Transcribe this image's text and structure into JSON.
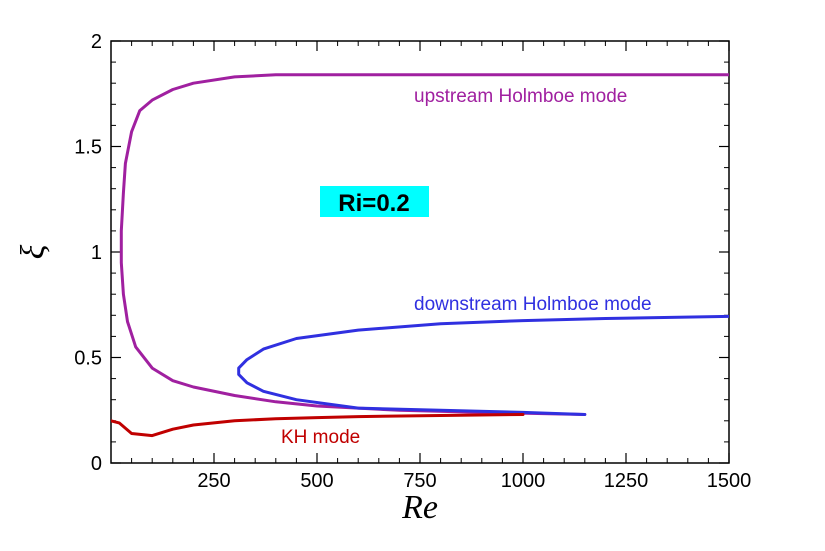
{
  "chart_data": {
    "type": "line",
    "xlabel": "Re",
    "ylabel": "ξ",
    "xlim": [
      0,
      1500
    ],
    "ylim": [
      0,
      2
    ],
    "x_ticks": [
      "250",
      "500",
      "750",
      "1000",
      "1250",
      "1500"
    ],
    "y_ticks": [
      "0",
      "0.5",
      "1",
      "1.5",
      "2"
    ],
    "x_tick_values": [
      250,
      500,
      750,
      1000,
      1250,
      1500
    ],
    "y_tick_values": [
      0,
      0.5,
      1,
      1.5,
      2
    ],
    "x_minor_step": 50,
    "y_minor_step": 0.1,
    "grid": false,
    "annotations": {
      "ri": "Ri=0.2",
      "upstream": "upstream Holmboe mode",
      "downstream": "downstream Holmboe mode",
      "kh": "KH mode"
    },
    "colors": {
      "ri_box": "#00ffff",
      "upstream": "#a020a0",
      "downstream": "#3030e0",
      "kh": "#c00000"
    },
    "series": [
      {
        "id": "upstream",
        "color": "#a020a0",
        "x": [
          1150,
          900,
          700,
          500,
          400,
          300,
          200,
          150,
          100,
          60,
          40,
          30,
          25,
          25,
          30,
          35,
          50,
          70,
          100,
          150,
          200,
          300,
          400,
          600,
          800,
          1000,
          1200,
          1500
        ],
        "y": [
          0.23,
          0.24,
          0.25,
          0.27,
          0.29,
          0.32,
          0.36,
          0.39,
          0.45,
          0.55,
          0.67,
          0.8,
          0.95,
          1.1,
          1.28,
          1.42,
          1.57,
          1.67,
          1.72,
          1.77,
          1.8,
          1.83,
          1.84,
          1.84,
          1.84,
          1.84,
          1.84,
          1.84
        ]
      },
      {
        "id": "downstream",
        "color": "#3030e0",
        "x": [
          1150,
          1000,
          800,
          600,
          450,
          370,
          330,
          310,
          310,
          330,
          370,
          450,
          600,
          800,
          1000,
          1200,
          1500
        ],
        "y": [
          0.23,
          0.24,
          0.25,
          0.26,
          0.3,
          0.34,
          0.38,
          0.42,
          0.45,
          0.49,
          0.54,
          0.59,
          0.63,
          0.66,
          0.675,
          0.685,
          0.695
        ]
      },
      {
        "id": "kh",
        "color": "#c00000",
        "x": [
          0,
          20,
          50,
          100,
          150,
          200,
          300,
          400,
          500,
          600,
          800,
          1000
        ],
        "y": [
          0.2,
          0.19,
          0.14,
          0.13,
          0.16,
          0.18,
          0.2,
          0.21,
          0.215,
          0.22,
          0.225,
          0.23
        ]
      }
    ]
  }
}
